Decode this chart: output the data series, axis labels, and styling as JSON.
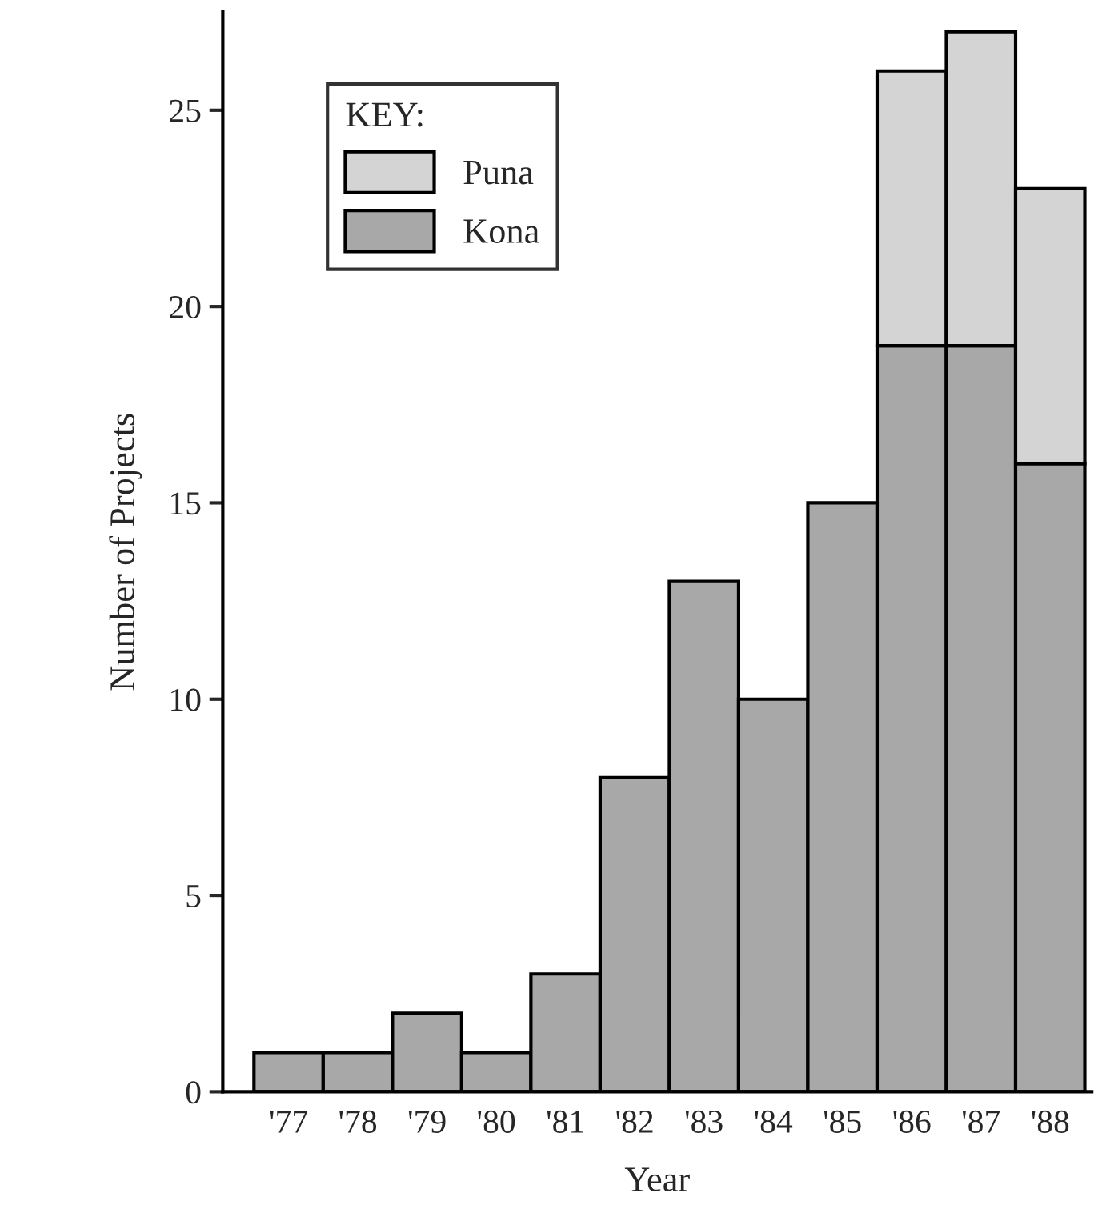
{
  "chart_data": {
    "type": "bar",
    "stacked": true,
    "xlabel": "Year",
    "ylabel": "Number of Projects",
    "legend_title": "KEY:",
    "categories": [
      "'77",
      "'78",
      "'79",
      "'80",
      "'81",
      "'82",
      "'83",
      "'84",
      "'85",
      "'86",
      "'87",
      "'88"
    ],
    "series": [
      {
        "name": "Kona",
        "color": "#a8a8a8",
        "values": [
          1,
          1,
          2,
          1,
          3,
          8,
          13,
          10,
          15,
          19,
          19,
          16
        ]
      },
      {
        "name": "Puna",
        "color": "#d4d4d4",
        "values": [
          null,
          null,
          null,
          null,
          null,
          null,
          null,
          null,
          null,
          7,
          8,
          7
        ]
      }
    ],
    "ylim": [
      0,
      27.5
    ],
    "yticks": [
      0,
      5,
      10,
      15,
      20,
      25
    ],
    "grid": false,
    "legend": "top left"
  }
}
